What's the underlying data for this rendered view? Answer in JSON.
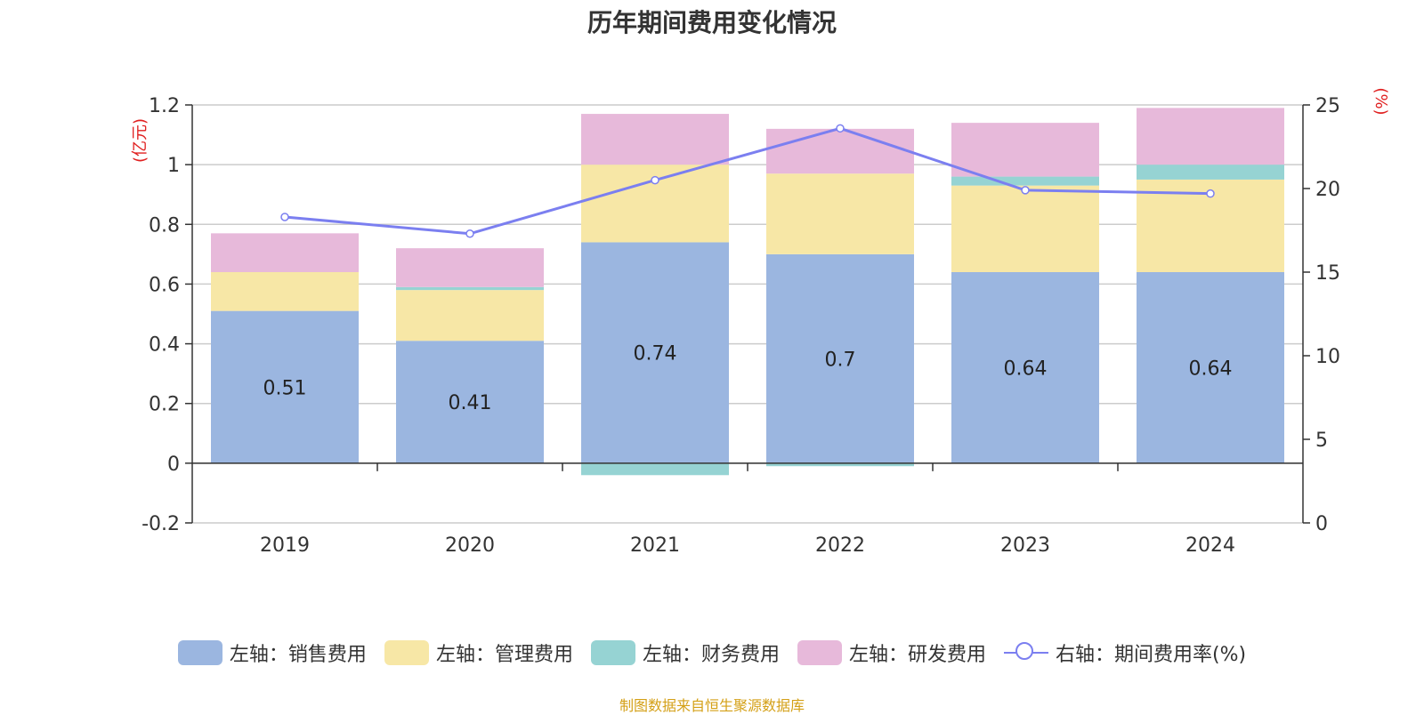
{
  "title": "历年期间费用变化情况",
  "source": "制图数据来自恒生聚源数据库",
  "chart_data": {
    "type": "bar",
    "stacked": true,
    "categories": [
      "2019",
      "2020",
      "2021",
      "2022",
      "2023",
      "2024"
    ],
    "left_axis": {
      "unit_label": "(亿元)",
      "ylim": [
        -0.2,
        1.2
      ],
      "ticks": [
        "-0.2",
        "0",
        "0.2",
        "0.4",
        "0.6",
        "0.8",
        "1",
        "1.2"
      ]
    },
    "right_axis": {
      "unit_label": "(%)",
      "ylim": [
        0,
        25
      ],
      "ticks": [
        "0",
        "5",
        "10",
        "15",
        "20",
        "25"
      ]
    },
    "series": [
      {
        "name": "左轴：销售费用",
        "axis": "left",
        "type": "bar",
        "color": "#9bb6e0",
        "values": [
          0.51,
          0.41,
          0.74,
          0.7,
          0.64,
          0.64
        ],
        "labels": [
          "0.51",
          "0.41",
          "0.74",
          "0.7",
          "0.64",
          "0.64"
        ]
      },
      {
        "name": "左轴：管理费用",
        "axis": "left",
        "type": "bar",
        "color": "#f7e7a6",
        "values": [
          0.13,
          0.17,
          0.26,
          0.27,
          0.29,
          0.31
        ]
      },
      {
        "name": "左轴：财务费用",
        "axis": "left",
        "type": "bar",
        "color": "#96d3d3",
        "values": [
          0.0,
          0.01,
          -0.04,
          -0.01,
          0.03,
          0.05
        ]
      },
      {
        "name": "左轴：研发费用",
        "axis": "left",
        "type": "bar",
        "color": "#e7b9da",
        "values": [
          0.13,
          0.13,
          0.17,
          0.15,
          0.18,
          0.19
        ]
      },
      {
        "name": "右轴：期间费用率(%)",
        "axis": "right",
        "type": "line",
        "color": "#7b7ff0",
        "values": [
          18.3,
          17.3,
          20.5,
          23.6,
          19.9,
          19.7
        ]
      }
    ],
    "grid": true,
    "legend_position": "bottom"
  }
}
